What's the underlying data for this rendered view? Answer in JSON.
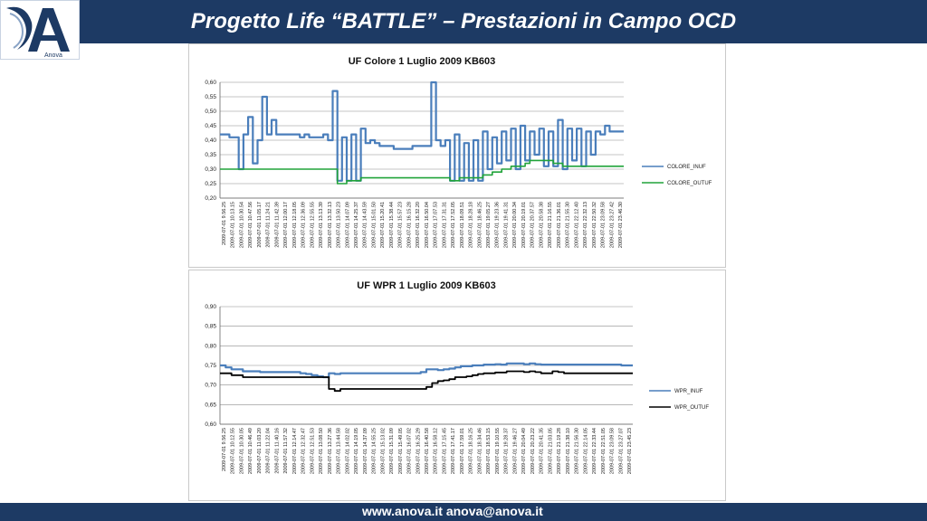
{
  "header": {
    "title": "Progetto Life “BATTLE” – Prestazioni in Campo OCD",
    "logo_text": "Anova"
  },
  "footer": {
    "contact": "www.anova.it   anova@anova.it"
  },
  "colors": {
    "header_bg": "#1d3a64",
    "inuf_line": "#4a7ebb",
    "outuf_line_chart1": "#21a33a",
    "outuf_line_chart2": "#000000"
  },
  "chart_data": [
    {
      "type": "line",
      "title": "UF Colore 1 Luglio 2009 KB603",
      "xlabel": "",
      "ylabel": "",
      "ylim": [
        0.2,
        0.6
      ],
      "yticks": [
        "0,20",
        "0,25",
        "0,30",
        "0,35",
        "0,40",
        "0,45",
        "0,50",
        "0,55",
        "0,60"
      ],
      "grid": true,
      "legend": "right",
      "x_tick_labels": [
        "2009-07-01 9.56.25",
        "2009-07-01 10.13.15",
        "2009-07-01 10.30.54",
        "2009-07-01 10.47.56",
        "2009-07-01 11.05.17",
        "2009-07-01 11.24.21",
        "2009-07-01 11.42.39",
        "2009-07-01 12.00.17",
        "2009-07-01 12.18.05",
        "2009-07-01 12.36.09",
        "2009-07-01 12.55.55",
        "2009-07-01 13.13.39",
        "2009-07-01 13.32.13",
        "2009-07-01 13.50.23",
        "2009-07-01 14.07.09",
        "2009-07-01 14.25.37",
        "2009-07-01 14.43.59",
        "2009-07-01 15.01.50",
        "2009-07-01 15.20.41",
        "2009-07-01 15.38.44",
        "2009-07-01 15.57.23",
        "2009-07-01 16.15.28",
        "2009-07-01 16.32.20",
        "2009-07-01 16.50.04",
        "2009-07-01 17.07.53",
        "2009-07-01 17.31.31",
        "2009-07-01 17.52.05",
        "2009-07-01 18.09.51",
        "2009-07-01 18.28.18",
        "2009-07-01 18.46.25",
        "2009-07-01 19.05.27",
        "2009-07-01 19.23.36",
        "2009-07-01 19.41.31",
        "2009-07-01 20.00.34",
        "2009-07-01 20.19.01",
        "2009-07-01 20.37.57",
        "2009-07-01 20.58.38",
        "2009-07-01 21.16.55",
        "2009-07-01 21.36.01",
        "2009-07-01 21.55.30",
        "2009-07-01 22.12.40",
        "2009-07-01 22.32.13",
        "2009-07-01 22.50.32",
        "2009-07-01 23.09.58",
        "2009-07-01 23.27.42",
        "2009-07-01 23.46.30"
      ],
      "series": [
        {
          "name": "COLORE_INUF",
          "values": [
            0.42,
            0.42,
            0.41,
            0.41,
            0.3,
            0.42,
            0.48,
            0.32,
            0.4,
            0.55,
            0.42,
            0.47,
            0.42,
            0.42,
            0.42,
            0.42,
            0.42,
            0.41,
            0.42,
            0.41,
            0.41,
            0.41,
            0.42,
            0.4,
            0.57,
            0.26,
            0.41,
            0.26,
            0.42,
            0.26,
            0.44,
            0.39,
            0.4,
            0.39,
            0.38,
            0.38,
            0.38,
            0.37,
            0.37,
            0.37,
            0.37,
            0.38,
            0.38,
            0.38,
            0.38,
            0.6,
            0.4,
            0.38,
            0.4,
            0.26,
            0.42,
            0.26,
            0.39,
            0.26,
            0.4,
            0.26,
            0.43,
            0.3,
            0.41,
            0.32,
            0.43,
            0.33,
            0.44,
            0.3,
            0.45,
            0.33,
            0.43,
            0.35,
            0.44,
            0.31,
            0.43,
            0.31,
            0.47,
            0.3,
            0.44,
            0.33,
            0.44,
            0.31,
            0.43,
            0.35,
            0.43,
            0.42,
            0.45,
            0.43,
            0.43,
            0.43,
            0.43
          ]
        },
        {
          "name": "COLORE_OUTUF",
          "values": [
            0.3,
            0.3,
            0.3,
            0.3,
            0.3,
            0.3,
            0.3,
            0.3,
            0.3,
            0.3,
            0.3,
            0.3,
            0.3,
            0.3,
            0.3,
            0.3,
            0.3,
            0.3,
            0.3,
            0.3,
            0.3,
            0.3,
            0.3,
            0.3,
            0.3,
            0.25,
            0.25,
            0.26,
            0.26,
            0.26,
            0.27,
            0.27,
            0.27,
            0.27,
            0.27,
            0.27,
            0.27,
            0.27,
            0.27,
            0.27,
            0.27,
            0.27,
            0.27,
            0.27,
            0.27,
            0.27,
            0.27,
            0.27,
            0.27,
            0.26,
            0.26,
            0.27,
            0.27,
            0.27,
            0.27,
            0.27,
            0.28,
            0.28,
            0.29,
            0.29,
            0.3,
            0.3,
            0.31,
            0.31,
            0.31,
            0.32,
            0.33,
            0.33,
            0.33,
            0.33,
            0.33,
            0.32,
            0.32,
            0.31,
            0.31,
            0.31,
            0.31,
            0.31,
            0.31,
            0.31,
            0.31,
            0.31,
            0.31,
            0.31,
            0.31,
            0.31,
            0.31
          ]
        }
      ]
    },
    {
      "type": "line",
      "title": "UF WPR 1 Luglio 2009 KB603",
      "xlabel": "",
      "ylabel": "",
      "ylim": [
        0.6,
        0.9
      ],
      "yticks": [
        "0,60",
        "0,65",
        "0,70",
        "0,75",
        "0,80",
        "0,85",
        "0,90"
      ],
      "grid": true,
      "legend": "right",
      "x_tick_labels": [
        "2009-07-01 9.56.25",
        "2009-07-01 10.12.55",
        "2009-07-01 10.30.05",
        "2009-07-01 10.46.49",
        "2009-07-01 11.03.20",
        "2009-07-01 11.22.04",
        "2009-07-01 11.40.16",
        "2009-07-01 11.57.32",
        "2009-07-01 12.14.47",
        "2009-07-01 12.32.47",
        "2009-07-01 12.51.53",
        "2009-07-01 13.08.50",
        "2009-07-01 13.27.36",
        "2009-07-01 13.44.58",
        "2009-07-01 14.02.02",
        "2009-07-01 14.19.05",
        "2009-07-01 14.37.09",
        "2009-07-01 14.55.25",
        "2009-07-01 15.13.02",
        "2009-07-01 15.31.09",
        "2009-07-01 15.49.05",
        "2009-07-01 16.07.02",
        "2009-07-01 16.25.29",
        "2009-07-01 16.40.58",
        "2009-07-01 16.58.12",
        "2009-07-01 17.15.45",
        "2009-07-01 17.41.17",
        "2009-07-01 17.59.01",
        "2009-07-01 18.16.25",
        "2009-07-01 18.34.46",
        "2009-07-01 18.53.15",
        "2009-07-01 19.10.55",
        "2009-07-01 19.28.37",
        "2009-07-01 19.46.27",
        "2009-07-01 20.04.49",
        "2009-07-01 20.23.22",
        "2009-07-01 20.41.35",
        "2009-07-01 21.03.05",
        "2009-07-01 21.19.28",
        "2009-07-01 21.38.10",
        "2009-07-01 21.56.30",
        "2009-07-01 22.14.05",
        "2009-07-01 22.33.44",
        "2009-07-01 22.51.05",
        "2009-07-01 23.09.58",
        "2009-07-01 23.27.07",
        "2009-07-01 23.45.23"
      ],
      "series": [
        {
          "name": "WPR_INUF",
          "values": [
            0.75,
            0.745,
            0.74,
            0.74,
            0.735,
            0.735,
            0.735,
            0.733,
            0.733,
            0.733,
            0.733,
            0.733,
            0.733,
            0.733,
            0.73,
            0.728,
            0.725,
            0.722,
            0.72,
            0.73,
            0.728,
            0.73,
            0.73,
            0.73,
            0.73,
            0.73,
            0.73,
            0.73,
            0.73,
            0.73,
            0.73,
            0.73,
            0.73,
            0.73,
            0.73,
            0.733,
            0.74,
            0.74,
            0.738,
            0.74,
            0.742,
            0.745,
            0.748,
            0.748,
            0.75,
            0.75,
            0.752,
            0.752,
            0.753,
            0.752,
            0.755,
            0.755,
            0.755,
            0.753,
            0.755,
            0.753,
            0.752,
            0.752,
            0.752,
            0.752,
            0.752,
            0.752,
            0.752,
            0.752,
            0.752,
            0.752,
            0.752,
            0.752,
            0.752,
            0.752,
            0.75,
            0.75,
            0.75
          ]
        },
        {
          "name": "WPR_OUTUF",
          "values": [
            0.73,
            0.73,
            0.725,
            0.725,
            0.72,
            0.72,
            0.72,
            0.72,
            0.72,
            0.72,
            0.72,
            0.72,
            0.72,
            0.72,
            0.72,
            0.72,
            0.72,
            0.72,
            0.72,
            0.69,
            0.685,
            0.69,
            0.69,
            0.69,
            0.69,
            0.69,
            0.69,
            0.69,
            0.69,
            0.69,
            0.69,
            0.69,
            0.69,
            0.69,
            0.69,
            0.69,
            0.695,
            0.705,
            0.71,
            0.712,
            0.715,
            0.72,
            0.72,
            0.722,
            0.725,
            0.728,
            0.73,
            0.73,
            0.732,
            0.732,
            0.735,
            0.735,
            0.735,
            0.733,
            0.735,
            0.733,
            0.73,
            0.73,
            0.735,
            0.733,
            0.73,
            0.73,
            0.73,
            0.73,
            0.73,
            0.73,
            0.73,
            0.73,
            0.73,
            0.73,
            0.73,
            0.73,
            0.73
          ]
        }
      ]
    }
  ]
}
